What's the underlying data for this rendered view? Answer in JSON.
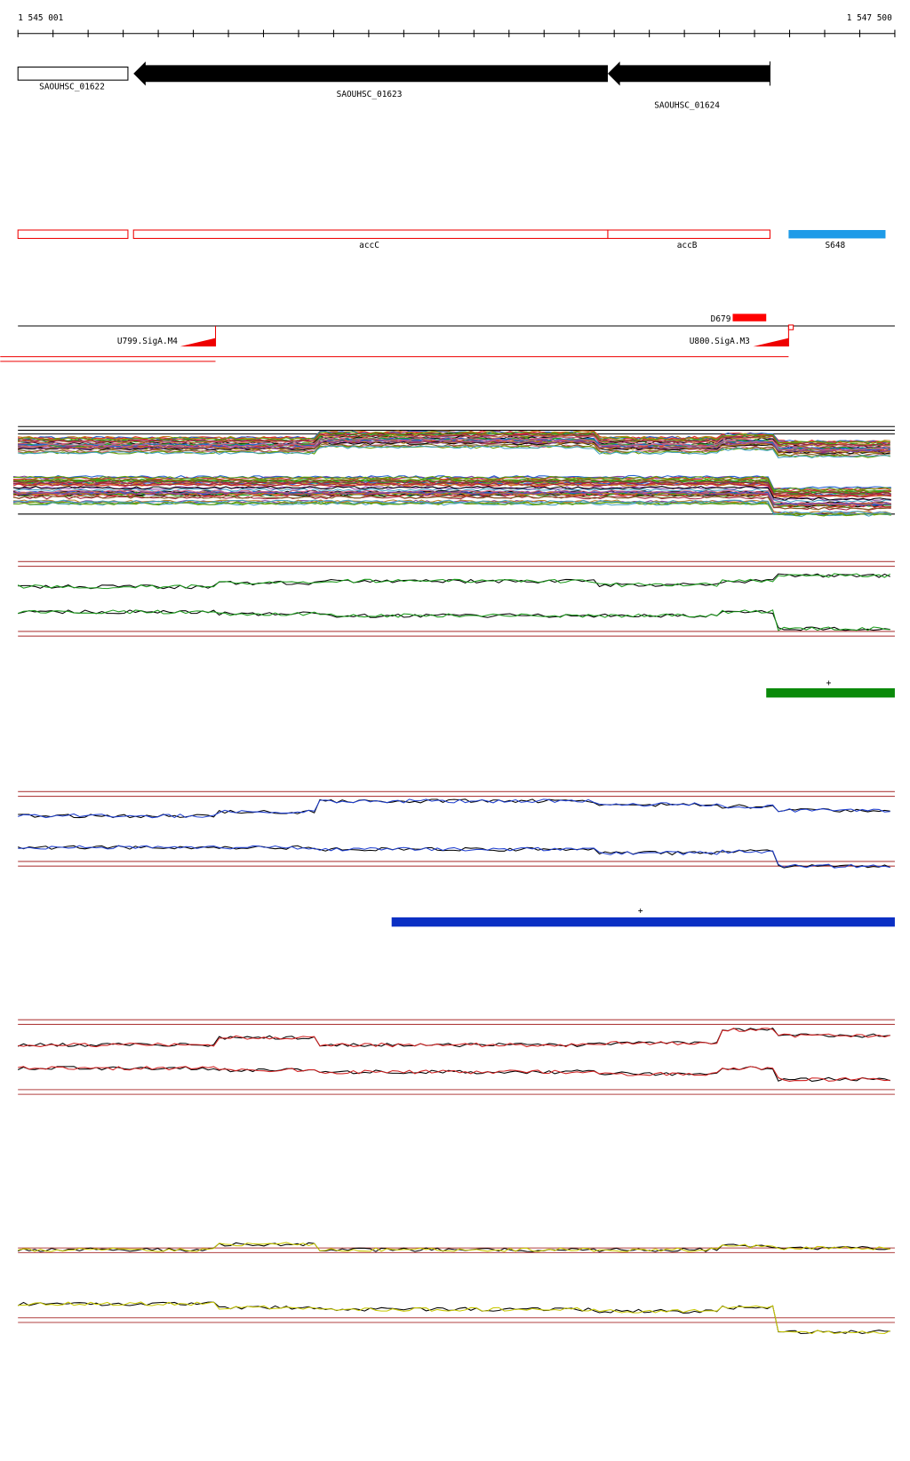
{
  "ruler": {
    "start": "1 545 001",
    "end": "1 547 500"
  },
  "genes": [
    {
      "label": "SAOUHSC_01622"
    },
    {
      "label": "SAOUHSC_01623"
    },
    {
      "label": "SAOUHSC_01624"
    }
  ],
  "annotations": [
    {
      "label": "accC"
    },
    {
      "label": "accB"
    },
    {
      "label": "S648"
    }
  ],
  "features": [
    {
      "label": "D679"
    },
    {
      "label": "U799.SigA.M4"
    },
    {
      "label": "U800.SigA.M3"
    }
  ],
  "strand_marks": [
    {
      "label": "+"
    },
    {
      "label": "+"
    }
  ]
}
